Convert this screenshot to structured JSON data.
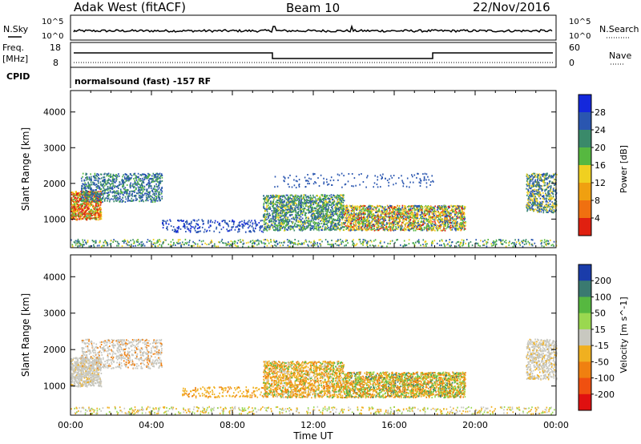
{
  "header": {
    "station": "Adak West (fitACF)",
    "beam": "Beam 10",
    "date": "22/Nov/2016"
  },
  "panels": {
    "nsky_label": "N.Sky",
    "nsearch_label": "N.Search",
    "nsky_ticks": [
      "10^5",
      "10^0"
    ],
    "freq_label": "Freq.",
    "freq_unit": "[MHz]",
    "freq_ticks": [
      "18",
      "8"
    ],
    "nave_label": "Nave",
    "nave_ticks": [
      "60",
      "0"
    ],
    "cpid_label": "CPID",
    "cpid_text": "normalsound (fast) -157 RF"
  },
  "chart_data": [
    {
      "type": "heatmap",
      "name": "power",
      "ylabel": "Slant Range [km]",
      "yticks": [
        1000,
        2000,
        3000,
        4000
      ],
      "ylim": [
        200,
        4600
      ],
      "xticks": [
        "00:00",
        "04:00",
        "08:00",
        "12:00",
        "16:00",
        "20:00",
        "00:00"
      ],
      "colorbar_label": "Power [dB]",
      "colorbar_ticks": [
        4,
        8,
        12,
        16,
        20,
        24,
        28
      ],
      "colorbar_colors": [
        "#1428dc",
        "#2a56b0",
        "#3a8a6a",
        "#56b840",
        "#f0d020",
        "#f0a010",
        "#f07010",
        "#e02010"
      ]
    },
    {
      "type": "heatmap",
      "name": "velocity",
      "ylabel": "Slant Range [km]",
      "yticks": [
        1000,
        2000,
        3000,
        4000
      ],
      "ylim": [
        200,
        4600
      ],
      "xticks": [
        "00:00",
        "04:00",
        "08:00",
        "12:00",
        "16:00",
        "20:00",
        "00:00"
      ],
      "xlabel": "Time UT",
      "colorbar_label": "Velocity [m s^-1]",
      "colorbar_ticks": [
        200,
        100,
        50,
        15,
        -15,
        -50,
        -100,
        -200
      ],
      "colorbar_colors": [
        "#1a3caa",
        "#3a7a70",
        "#56b840",
        "#9ad850",
        "#c8c8c0",
        "#f0b020",
        "#f08010",
        "#f05010",
        "#e01010"
      ]
    }
  ]
}
